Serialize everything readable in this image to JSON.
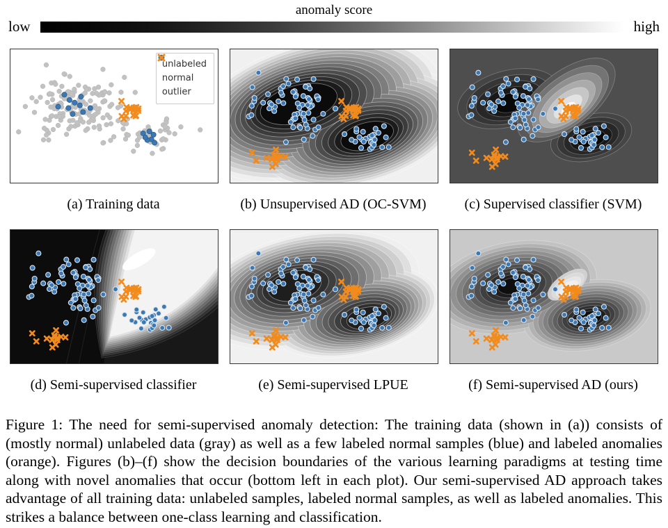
{
  "colorbar": {
    "title": "anomaly score",
    "low": "low",
    "high": "high",
    "gradient_stops": [
      "#000000 0%",
      "#141414 20%",
      "#3c3c3c 40%",
      "#6d6d6d 57%",
      "#a2a2a2 72%",
      "#cfcfcf 85%",
      "#f6f6f6 97%",
      "#ffffff 100%"
    ]
  },
  "legend": {
    "items": [
      {
        "label": "unlabeled",
        "marker": "circle",
        "color": "#c2c2c2"
      },
      {
        "label": "normal",
        "marker": "circle",
        "color": "#3a76ae"
      },
      {
        "label": "outlier",
        "marker": "x",
        "color": "#f28b1d"
      }
    ]
  },
  "panels": [
    {
      "id": "a",
      "caption": "(a) Training data"
    },
    {
      "id": "b",
      "caption": "(b) Unsupervised AD (OC-SVM)"
    },
    {
      "id": "c",
      "caption": "(c) Supervised classifier (SVM)"
    },
    {
      "id": "d",
      "caption": "(d) Semi-supervised classifier"
    },
    {
      "id": "e",
      "caption": "(e) Semi-supervised LPUE"
    },
    {
      "id": "f",
      "caption": "(f) Semi-supervised AD (ours)"
    }
  ],
  "figure_caption": "Figure 1: The need for semi-supervised anomaly detection: The training data (shown in (a)) consists of (mostly normal) unlabeled data (gray) as well as a few labeled normal samples (blue) and labeled anomalies (orange). Figures (b)–(f) show the decision boundaries of the various learning paradigms at testing time along with novel anomalies that occur (bottom left in each plot). Our semi-supervised AD approach takes advantage of all training data: unlabeled samples, labeled normal samples, as well as labeled anomalies. This strikes a balance between one-class learning and classification.",
  "chart_data": {
    "type": "scatter",
    "coordinate_space": "percent of panel area, origin top-left, y downward",
    "colors": {
      "unlabeled": "#c2c2c2",
      "normal_fill": "#3c79b4",
      "normal_edge_light": "#dce6ee",
      "normal_edge_dark": "#2a5d8f",
      "outlier": "#f28b1d"
    },
    "clusters": {
      "unlabeled_left": {
        "center": [
          32,
          43
        ],
        "std": [
          10.5,
          11
        ],
        "n": 150,
        "seed": 11
      },
      "unlabeled_right": {
        "center": [
          68,
          66
        ],
        "std": [
          7.5,
          6
        ],
        "n": 45,
        "seed": 22
      },
      "normal_left_test": {
        "center": [
          31,
          42
        ],
        "std": [
          10,
          10.5
        ],
        "n": 72,
        "seed": 33
      },
      "normal_right_test": {
        "center": [
          67,
          66
        ],
        "std": [
          6.5,
          5.5
        ],
        "n": 28,
        "seed": 44
      },
      "labeled_outliers": {
        "center": [
          57,
          46
        ],
        "std": [
          2.6,
          3.0
        ],
        "n": 19,
        "seed": 55
      },
      "labeled_normal_left": {
        "points": [
          [
            26,
            34
          ],
          [
            23,
            43
          ],
          [
            28,
            44
          ],
          [
            31,
            40
          ],
          [
            33.5,
            42
          ],
          [
            30,
            48.5
          ],
          [
            35,
            47
          ],
          [
            38.5,
            44
          ],
          [
            34,
            35.5
          ],
          [
            28.5,
            38
          ]
        ]
      },
      "labeled_normal_right": {
        "points": [
          [
            64,
            63
          ],
          [
            67,
            61.5
          ],
          [
            69,
            64
          ],
          [
            68,
            67.5
          ],
          [
            66,
            68
          ],
          [
            69.5,
            70
          ],
          [
            65,
            66
          ]
        ]
      },
      "novel_anomalies": [
        {
          "center": [
            20.5,
            80.5
          ],
          "std": [
            2.0,
            2.2
          ],
          "n": 11,
          "seed": 66
        },
        {
          "center": [
            10.5,
            77.5
          ],
          "std": [
            0,
            0
          ],
          "n": 1,
          "seed": 67
        },
        {
          "center": [
            12.5,
            83.5
          ],
          "std": [
            0,
            0
          ],
          "n": 1,
          "seed": 68
        },
        {
          "center": [
            26.5,
            80.5
          ],
          "std": [
            0,
            0
          ],
          "n": 1,
          "seed": 69
        }
      ]
    },
    "panel_descriptions": {
      "a": "training scatter only: gray unlabeled, few blue labeled normal, orange labeled outliers; white background",
      "b": "OC-SVM anomaly-score contours: dark (low score) kidney region enclosing both normal clusters, light toward edges",
      "c": "SVM decision surface: uniform mid-gray, dark wells on both normal clusters, bright white peak on labeled outlier cluster",
      "d": "semi-supervised classifier: nearly black everywhere with a bright funnel opening to the top-right through the outlier cluster",
      "e": "LPUE density contours: stepped gray bands darkening into each normal cluster on light background",
      "f": "ours: light gray background, dark score wells on both normal clusters, small white peak at labeled outliers"
    }
  }
}
